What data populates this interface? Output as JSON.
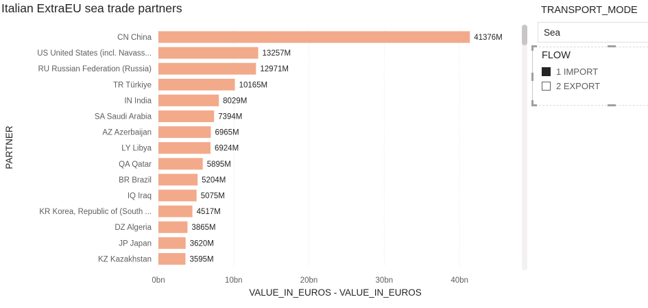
{
  "chart_title": "Italian ExtraEU sea trade partners",
  "colors": {
    "bar": "#f2aa8b",
    "grid": "#e6e6e6"
  },
  "chart_data": {
    "type": "bar",
    "orientation": "horizontal",
    "title": "Italian ExtraEU sea trade partners",
    "xlabel": "VALUE_IN_EUROS - VALUE_IN_EUROS",
    "ylabel": "PARTNER",
    "categories": [
      "CN China",
      "US United States (incl. Navass...",
      "RU Russian Federation (Russia)",
      "TR Türkiye",
      "IN India",
      "SA Saudi Arabia",
      "AZ Azerbaijan",
      "LY Libya",
      "QA Qatar",
      "BR Brazil",
      "IQ Iraq",
      "KR Korea, Republic of (South ...",
      "DZ Algeria",
      "JP Japan",
      "KZ Kazakhstan"
    ],
    "values": [
      41376,
      13257,
      12971,
      10165,
      8029,
      7394,
      6965,
      6924,
      5895,
      5204,
      5075,
      4517,
      3865,
      3620,
      3595
    ],
    "value_labels": [
      "41376M",
      "13257M",
      "12971M",
      "10165M",
      "8029M",
      "7394M",
      "6965M",
      "6924M",
      "5895M",
      "5204M",
      "5075M",
      "4517M",
      "3865M",
      "3620M",
      "3595M"
    ],
    "value_unit": "M",
    "xlim": [
      0,
      45000
    ],
    "xticks": [
      0,
      10000,
      20000,
      30000,
      40000
    ],
    "xtick_labels": [
      "0bn",
      "10bn",
      "20bn",
      "30bn",
      "40bn"
    ],
    "grid": true
  },
  "transport_slicer": {
    "title": "TRANSPORT_MODE",
    "selected": "Sea"
  },
  "flow_slicer": {
    "title": "FLOW",
    "items": [
      {
        "label": "1 IMPORT",
        "checked": true
      },
      {
        "label": "2 EXPORT",
        "checked": false
      }
    ]
  }
}
